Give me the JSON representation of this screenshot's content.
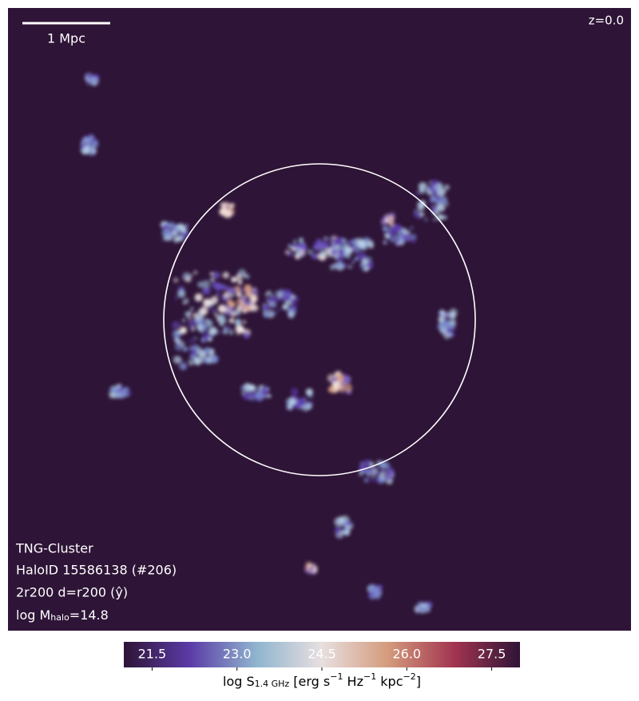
{
  "chart_data": {
    "type": "image",
    "scale_bar_label": "1 Mpc",
    "redshift_label": "z=0.0",
    "info_lines": [
      "TNG-Cluster",
      "HaloID 15586138 (#206)",
      "2r200 d=r200 (ŷ)"
    ],
    "mass_label": {
      "prefix": "log M",
      "subscript": "halo",
      "suffix": "=14.8"
    },
    "colorbar": {
      "clim": [
        21.0,
        28.0
      ],
      "ticks": [
        21.5,
        {
          "value": 23,
          "label": "23.0"
        },
        24.5,
        {
          "value": 26,
          "label": "26.0"
        },
        27.5
      ],
      "colors": [
        "#2f1437",
        "#5b3ba6",
        "#8fb4cf",
        "#e8dfe0",
        "#d49b7c",
        "#a23550",
        "#2f1437"
      ],
      "label_parts": [
        "log S",
        "1.4 GHz",
        " [erg s",
        "−1",
        " Hz",
        "−1",
        " kpc",
        "−2",
        "]"
      ]
    }
  }
}
